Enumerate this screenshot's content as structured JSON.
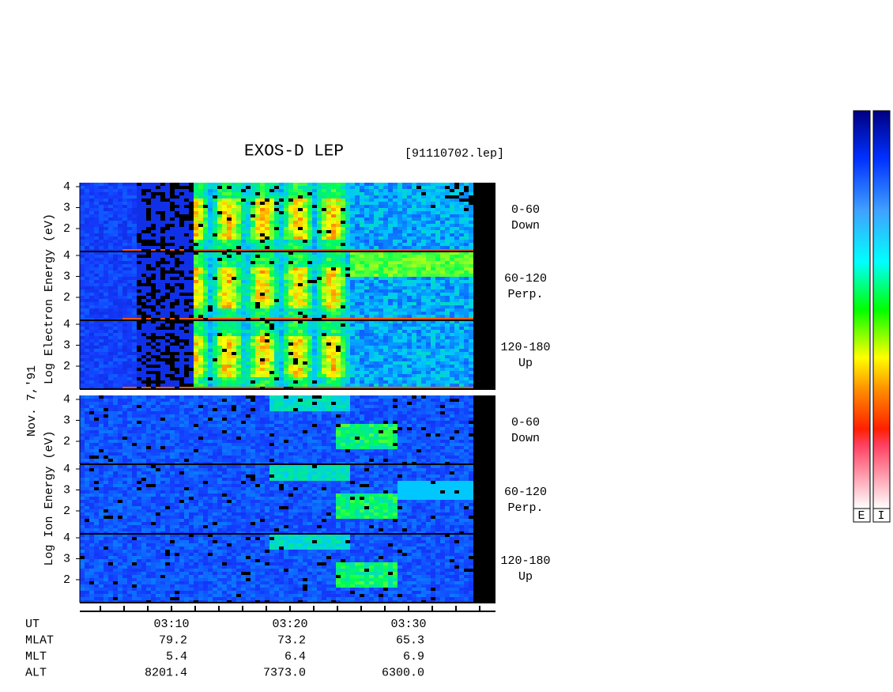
{
  "header": {
    "title": "EXOS-D LEP",
    "file": "[91110702.lep]"
  },
  "side_labels": {
    "electron": "Log  Electron  Energy (eV)",
    "ion": "Log  Ion  Energy (eV)",
    "date": "Nov. 7,'91"
  },
  "panels": [
    {
      "angle": "0-60",
      "direction": "Down",
      "yticks": [
        "4",
        "3",
        "2"
      ]
    },
    {
      "angle": "60-120",
      "direction": "Perp.",
      "yticks": [
        "4",
        "3",
        "2"
      ]
    },
    {
      "angle": "120-180",
      "direction": "Up",
      "yticks": [
        "4",
        "3",
        "2"
      ]
    },
    {
      "angle": "0-60",
      "direction": "Down",
      "yticks": [
        "4",
        "3",
        "2"
      ]
    },
    {
      "angle": "60-120",
      "direction": "Perp.",
      "yticks": [
        "4",
        "3",
        "2"
      ]
    },
    {
      "angle": "120-180",
      "direction": "Up",
      "yticks": [
        "4",
        "3",
        "2"
      ]
    }
  ],
  "orbit_table": {
    "rows": [
      {
        "label": "UT",
        "values": [
          "03:10",
          "03:20",
          "03:30"
        ]
      },
      {
        "label": "MLAT",
        "values": [
          "79.2",
          "73.2",
          "65.3"
        ]
      },
      {
        "label": "MLT",
        "values": [
          "5.4",
          "6.4",
          "6.9"
        ]
      },
      {
        "label": "ALT",
        "values": [
          "8201.4",
          "7373.0",
          "6300.0"
        ]
      }
    ]
  },
  "colorbars": [
    "E",
    "I"
  ]
}
